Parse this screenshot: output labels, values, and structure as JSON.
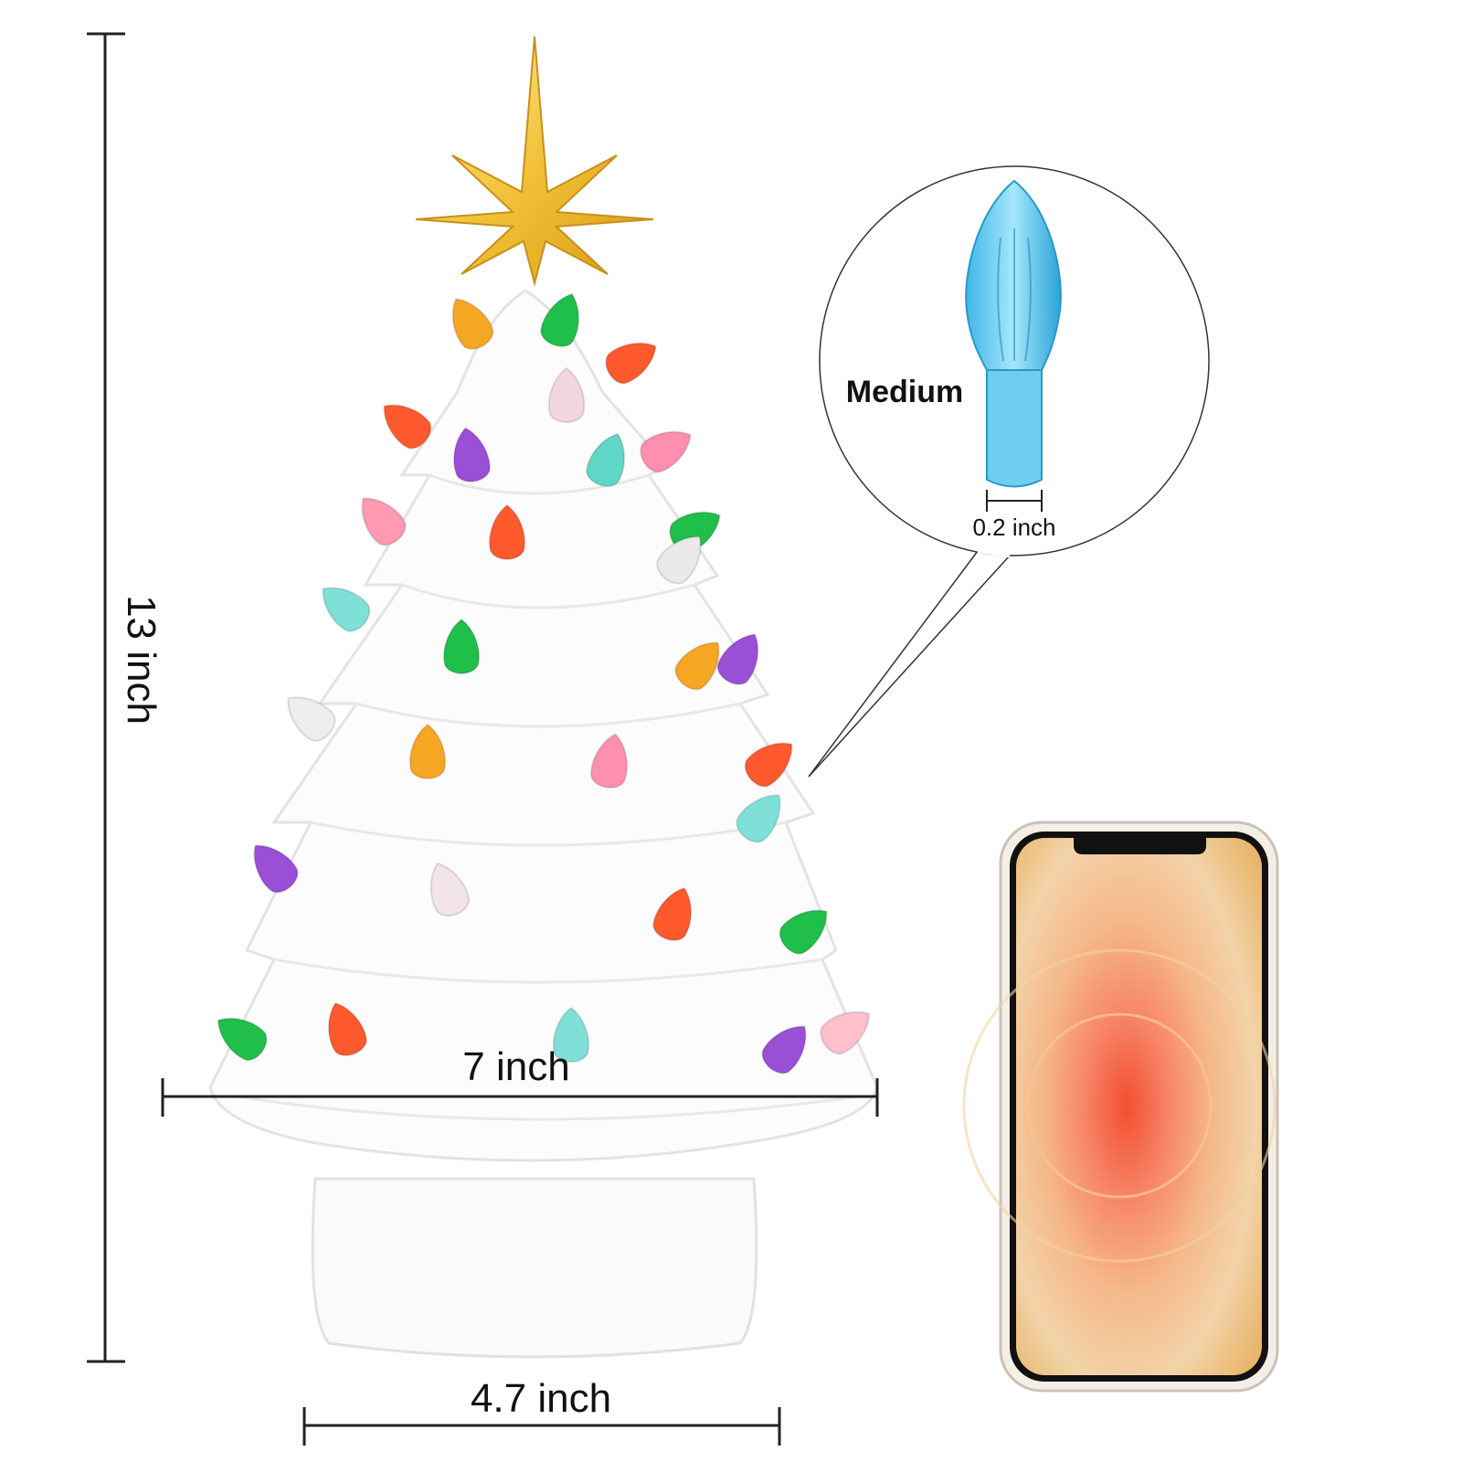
{
  "dimensions": {
    "height": "13 inch",
    "width": "7 inch",
    "base": "4.7 inch"
  },
  "callout": {
    "title": "Medium",
    "size": "0.2 inch"
  }
}
